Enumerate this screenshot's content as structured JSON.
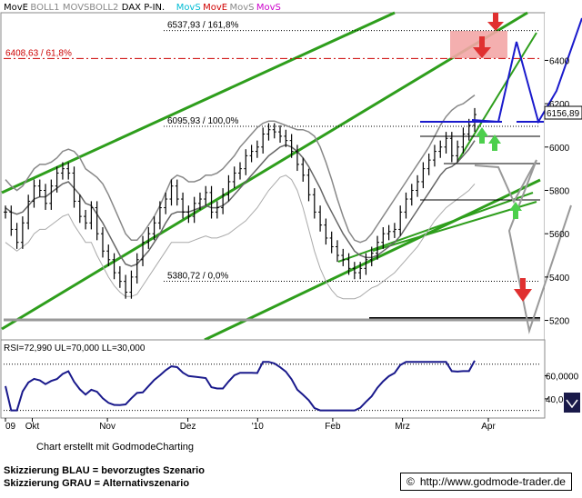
{
  "legend": [
    {
      "label": "MovE",
      "color": "#000000"
    },
    {
      "label": "BOLL1",
      "color": "#888888"
    },
    {
      "label": "MOVS",
      "color": "#888888"
    },
    {
      "label": "BOLL2",
      "color": "#888888"
    },
    {
      "label": "DAX P-IN.",
      "color": "#000000"
    },
    {
      "label": "MovS",
      "color": "#00bcd4"
    },
    {
      "label": "MovE",
      "color": "#d00000"
    },
    {
      "label": "MovS",
      "color": "#888888"
    },
    {
      "label": "MovS",
      "color": "#cc00cc"
    }
  ],
  "fib_levels": [
    {
      "label": "6537,93 / 161,8%",
      "value": 6537.93,
      "color": "#000000"
    },
    {
      "label": "6408,63 / 61,8%",
      "value": 6408.63,
      "color": "#cc0000"
    },
    {
      "label": "6095,93 / 100,0%",
      "value": 6095.93,
      "color": "#000000"
    },
    {
      "label": "5380,72 / 0,0%",
      "value": 5380.72,
      "color": "#000000"
    }
  ],
  "price_badge": "6156,89",
  "rsi": {
    "label": "RSI=72,990 UL=70,000 LL=30,000",
    "value": 72.99,
    "ul": 70,
    "ll": 30,
    "y_ticks": [
      "60,0000",
      "40,0000"
    ]
  },
  "credit": "Chart erstellt mit GodmodeCharting",
  "footer": {
    "line1": "Skizzierung BLAU = bevorzugtes Szenario",
    "line2": "Skizzierung GRAU = Alternativszenario",
    "url": "http://www.godmode-trader.de",
    "copyright": "©"
  },
  "chart_data": {
    "type": "line",
    "title": "DAX P-IN.",
    "x_labels": [
      "09",
      "Okt",
      "Nov",
      "Dez",
      "'10",
      "Feb",
      "Mrz",
      "Apr"
    ],
    "y_ticks": [
      5200,
      5400,
      5600,
      5800,
      6000,
      6200,
      6400
    ],
    "y_tick_labels": [
      "5200",
      "5400",
      "5600",
      "5800",
      "6000",
      "6200",
      "6400"
    ],
    "ylim": [
      5110,
      6620
    ],
    "grid": false,
    "legend": "top-left",
    "close": [
      5700,
      5620,
      5560,
      5650,
      5750,
      5820,
      5800,
      5740,
      5820,
      5880,
      5900,
      5880,
      5750,
      5680,
      5650,
      5720,
      5600,
      5520,
      5480,
      5420,
      5380,
      5330,
      5400,
      5480,
      5560,
      5600,
      5650,
      5720,
      5760,
      5820,
      5760,
      5700,
      5680,
      5740,
      5760,
      5790,
      5700,
      5720,
      5780,
      5840,
      5880,
      5900,
      5960,
      5980,
      6000,
      6060,
      6080,
      6070,
      6050,
      6030,
      5980,
      5920,
      5870,
      5780,
      5700,
      5640,
      5580,
      5540,
      5500,
      5480,
      5440,
      5420,
      5440,
      5480,
      5510,
      5560,
      5600,
      5610,
      5620,
      5700,
      5760,
      5800,
      5840,
      5900,
      5940,
      5980,
      6000,
      6040,
      5960,
      6000,
      6060,
      6100,
      6150
    ],
    "ma_fast": [
      5720,
      5700,
      5690,
      5700,
      5730,
      5760,
      5770,
      5770,
      5790,
      5810,
      5830,
      5840,
      5810,
      5780,
      5740,
      5730,
      5690,
      5650,
      5600,
      5550,
      5500,
      5460,
      5450,
      5460,
      5490,
      5520,
      5560,
      5600,
      5650,
      5690,
      5700,
      5700,
      5700,
      5710,
      5720,
      5730,
      5720,
      5720,
      5730,
      5750,
      5780,
      5810,
      5840,
      5870,
      5900,
      5930,
      5960,
      5980,
      6000,
      6010,
      6000,
      5980,
      5950,
      5910,
      5860,
      5810,
      5750,
      5700,
      5650,
      5600,
      5560,
      5520,
      5500,
      5490,
      5490,
      5500,
      5520,
      5540,
      5560,
      5590,
      5630,
      5670,
      5710,
      5750,
      5790,
      5830,
      5870,
      5900,
      5910,
      5930,
      5960,
      5990,
      6030
    ],
    "boll_upper": [
      5850,
      5820,
      5800,
      5820,
      5860,
      5900,
      5920,
      5920,
      5930,
      5950,
      5980,
      5990,
      5980,
      5950,
      5900,
      5880,
      5860,
      5830,
      5780,
      5720,
      5660,
      5600,
      5570,
      5570,
      5600,
      5640,
      5680,
      5730,
      5790,
      5850,
      5870,
      5860,
      5840,
      5840,
      5850,
      5870,
      5870,
      5880,
      5900,
      5930,
      5960,
      6000,
      6030,
      6060,
      6090,
      6110,
      6120,
      6120,
      6110,
      6100,
      6090,
      6080,
      6080,
      6070,
      6050,
      6000,
      5930,
      5850,
      5760,
      5680,
      5610,
      5570,
      5560,
      5570,
      5600,
      5640,
      5680,
      5720,
      5760,
      5800,
      5840,
      5880,
      5920,
      5960,
      6000,
      6050,
      6100,
      6140,
      6170,
      6190,
      6200,
      6220,
      6240
    ],
    "boll_lower": [
      5560,
      5540,
      5520,
      5540,
      5560,
      5600,
      5620,
      5620,
      5640,
      5660,
      5680,
      5690,
      5640,
      5600,
      5560,
      5560,
      5500,
      5450,
      5400,
      5360,
      5330,
      5310,
      5310,
      5320,
      5360,
      5400,
      5440,
      5480,
      5520,
      5560,
      5560,
      5560,
      5560,
      5570,
      5580,
      5590,
      5580,
      5580,
      5590,
      5600,
      5620,
      5640,
      5660,
      5690,
      5720,
      5760,
      5800,
      5830,
      5860,
      5870,
      5850,
      5800,
      5720,
      5620,
      5520,
      5440,
      5380,
      5340,
      5310,
      5300,
      5300,
      5300,
      5310,
      5330,
      5350,
      5360,
      5380,
      5400,
      5420,
      5450,
      5480,
      5510,
      5540,
      5580,
      5620,
      5660,
      5690,
      5720,
      5740,
      5760,
      5780,
      5800,
      5830
    ]
  }
}
